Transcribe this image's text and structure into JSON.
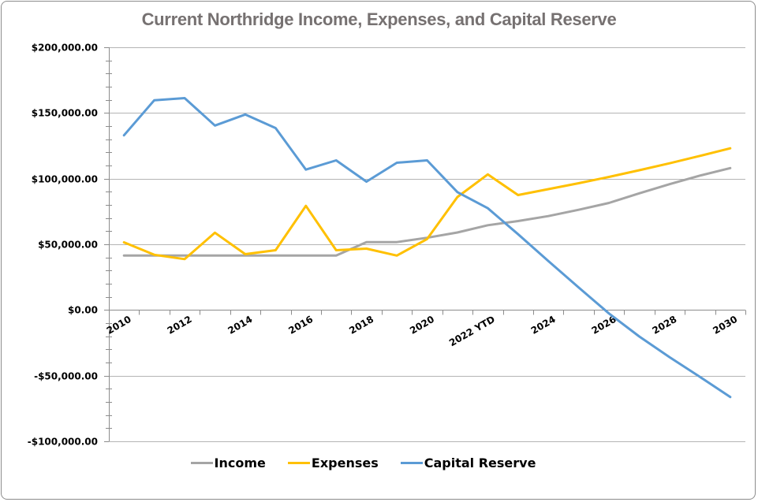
{
  "chart_data": {
    "type": "line",
    "title": "Current Northridge Income, Expenses, and Capital Reserve",
    "xlabel": "",
    "ylabel": "",
    "ylim": [
      -100000,
      200000
    ],
    "y_major_step": 50000,
    "y_minor_step": 10000,
    "grid": true,
    "legend_position": "bottom",
    "categories": [
      "2010",
      "2011",
      "2012",
      "2013",
      "2014",
      "2015",
      "2016",
      "2017",
      "2018",
      "2019",
      "2020",
      "2021",
      "2022 YTD",
      "2023",
      "2024",
      "2025",
      "2026",
      "2027",
      "2028",
      "2029",
      "2030"
    ],
    "x_tick_labels_shown": [
      "2010",
      "2012",
      "2014",
      "2016",
      "2018",
      "2020",
      "2022 YTD",
      "2024",
      "2026",
      "2028",
      "2030"
    ],
    "y_tick_labels": [
      "$200,000.00",
      "$150,000.00",
      "$100,000.00",
      "$50,000.00",
      "$0.00",
      "-$50,000.00",
      "-$100,000.00"
    ],
    "y_tick_values": [
      200000,
      150000,
      100000,
      50000,
      0,
      -50000,
      -100000
    ],
    "series": [
      {
        "name": "Income",
        "color": "#a5a5a5",
        "values": [
          41500,
          41500,
          41500,
          41500,
          41500,
          41500,
          41500,
          41500,
          51700,
          51700,
          55000,
          59000,
          64500,
          67700,
          71500,
          76300,
          81500,
          88800,
          95800,
          102300,
          108000
        ]
      },
      {
        "name": "Expenses",
        "color": "#ffc000",
        "values": [
          51500,
          42000,
          38700,
          58800,
          42500,
          45500,
          79300,
          45500,
          46700,
          41400,
          54000,
          86000,
          103200,
          87500,
          92000,
          96500,
          101300,
          106400,
          111700,
          117300,
          123100
        ]
      },
      {
        "name": "Capital Reserve",
        "color": "#5b9bd5",
        "values": [
          133000,
          159700,
          161300,
          140400,
          148800,
          138500,
          106900,
          113900,
          97700,
          112100,
          113900,
          89700,
          77500,
          57700,
          37300,
          17100,
          -2700,
          -20200,
          -36000,
          -51000,
          -66300
        ]
      }
    ]
  },
  "colors": {
    "title": "#767171",
    "gridline": "#b4b4b4",
    "axis": "#8c8c8c",
    "frame": "#8c8c8c"
  }
}
